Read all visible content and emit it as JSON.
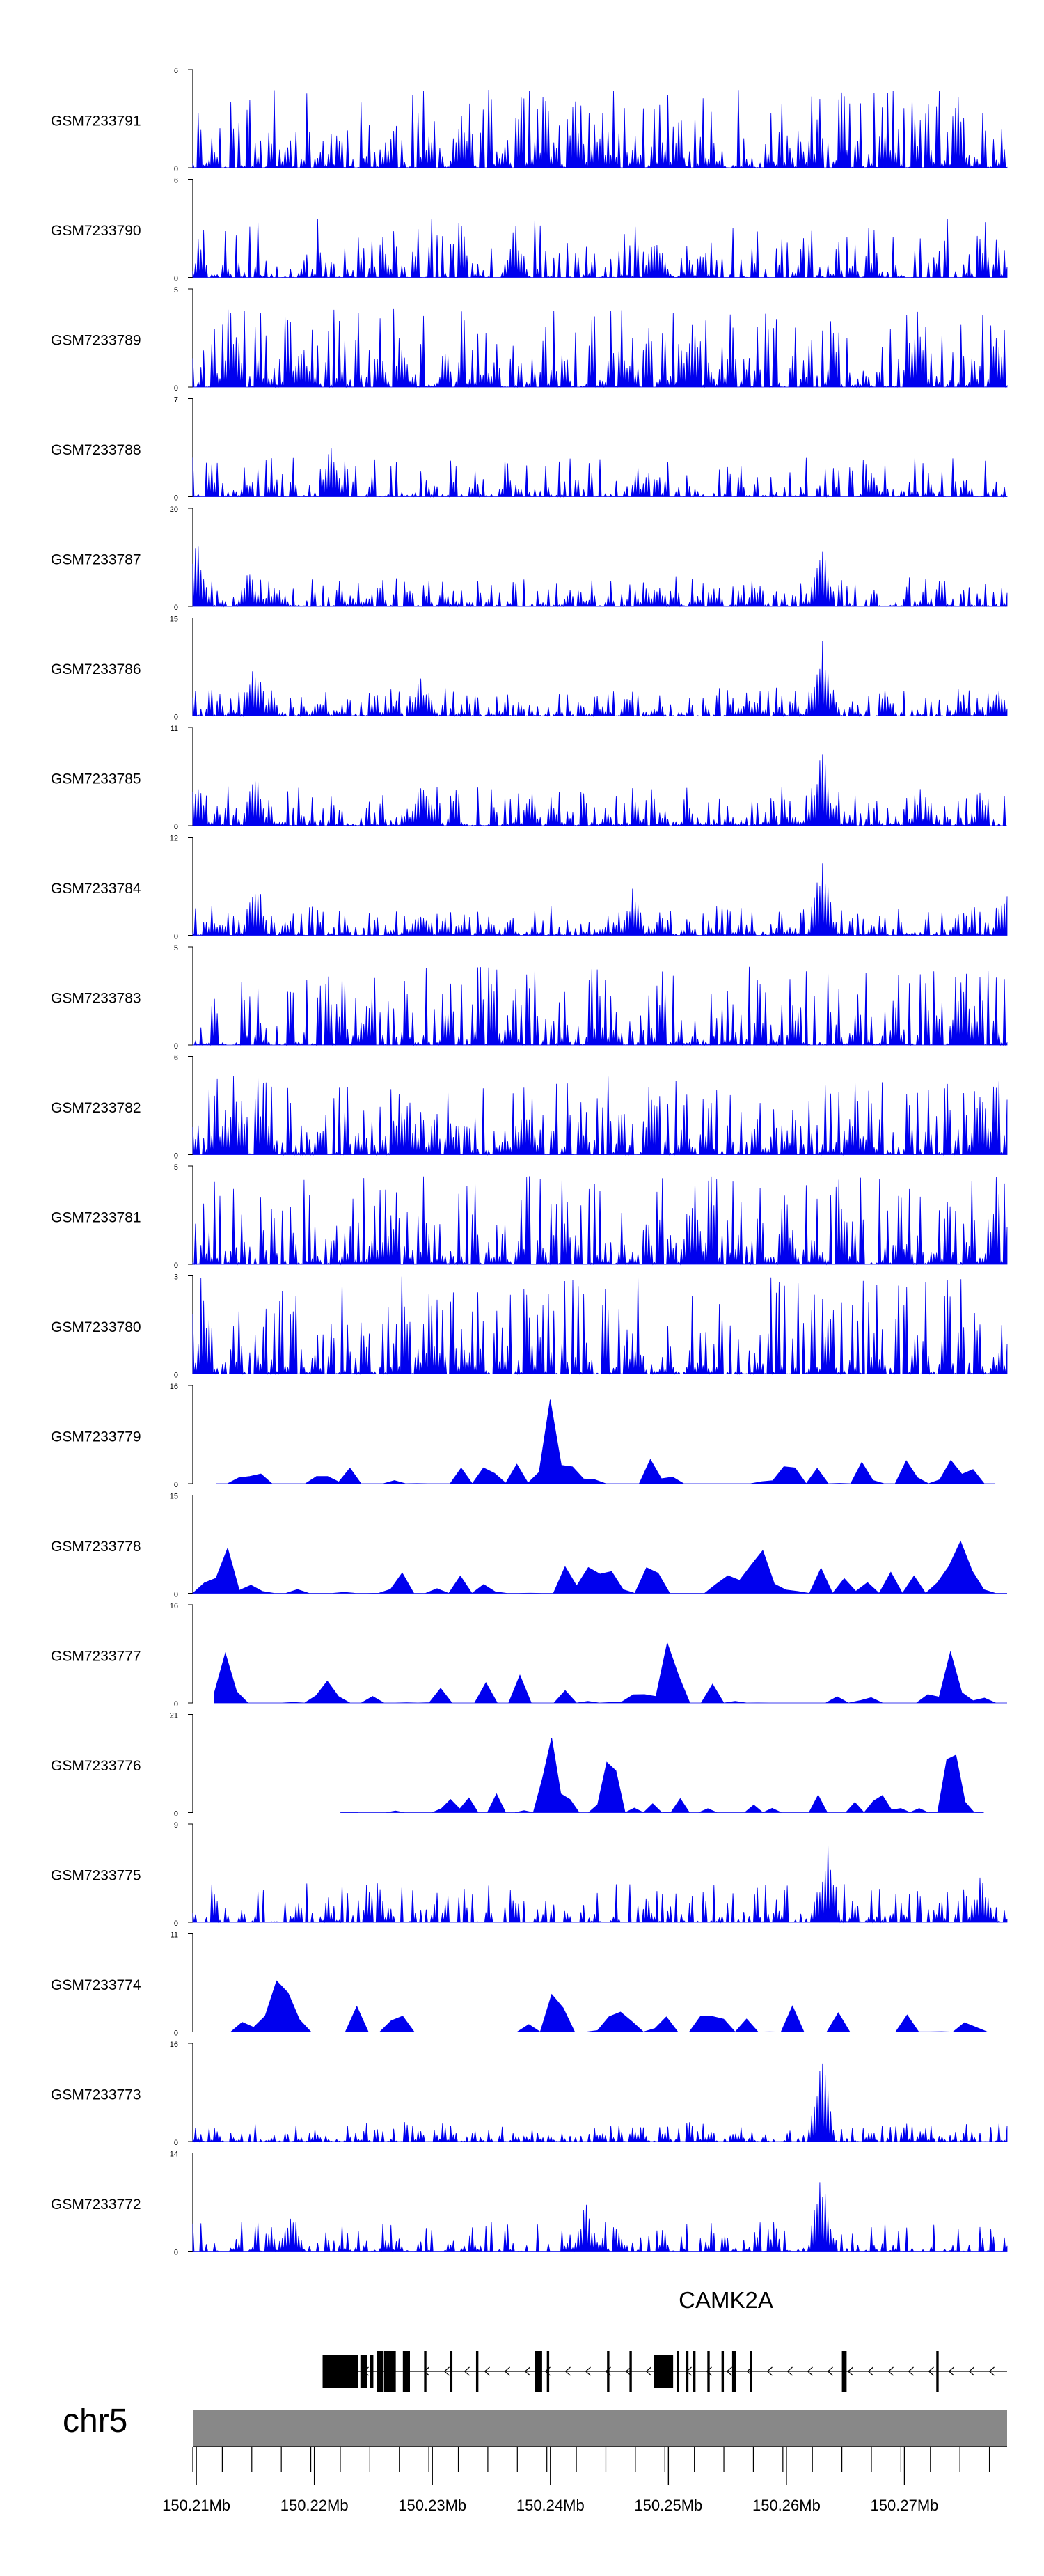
{
  "chart_data": {
    "type": "area",
    "x_range_mb": [
      150.2097,
      150.2787
    ],
    "x_ticks": [
      "150.21Mb",
      "150.22Mb",
      "150.23Mb",
      "150.24Mb",
      "150.25Mb",
      "150.26Mb",
      "150.27Mb"
    ],
    "x_tick_values": [
      150.21,
      150.22,
      150.23,
      150.24,
      150.25,
      150.26,
      150.27
    ],
    "chromosome": "chr5",
    "gene": {
      "name": "CAMK2A",
      "strand": "-",
      "start_mb": 150.2207,
      "end_mb": 150.2787
    },
    "exons_mb": [
      [
        150.2207,
        150.2237
      ],
      [
        150.2239,
        150.2245
      ],
      [
        150.2247,
        150.225
      ],
      [
        150.2253,
        150.2258
      ],
      [
        150.2259,
        150.2269
      ],
      [
        150.2275,
        150.2281
      ],
      [
        150.2293,
        150.2295
      ],
      [
        150.2315,
        150.2317
      ],
      [
        150.2337,
        150.2339
      ],
      [
        150.2387,
        150.2393
      ],
      [
        150.2397,
        150.2399
      ],
      [
        150.2448,
        150.245
      ],
      [
        150.2467,
        150.2469
      ],
      [
        150.2488,
        150.2504
      ],
      [
        150.2507,
        150.2509
      ],
      [
        150.2515,
        150.2517
      ],
      [
        150.2521,
        150.2523
      ],
      [
        150.2533,
        150.2535
      ],
      [
        150.2545,
        150.2547
      ],
      [
        150.2554,
        150.2557
      ],
      [
        150.2569,
        150.2571
      ],
      [
        150.2647,
        150.2651
      ],
      [
        150.2727,
        150.2729
      ]
    ],
    "tracks": [
      {
        "name": "GSM7233791",
        "ymax": 6,
        "seed": 11,
        "baseline": 0.8,
        "sparse": 0,
        "hotspots": [
          [
            150.2325,
            0.5
          ],
          [
            150.244,
            0.4
          ]
        ]
      },
      {
        "name": "GSM7233790",
        "ymax": 6,
        "seed": 23,
        "baseline": 0.6,
        "sparse": 0.2,
        "hotspots": [
          [
            150.237,
            0.6
          ],
          [
            150.249,
            0.5
          ]
        ]
      },
      {
        "name": "GSM7233789",
        "ymax": 5,
        "seed": 37,
        "baseline": 0.8,
        "sparse": 0,
        "hotspots": [
          [
            150.219,
            0.5
          ]
        ]
      },
      {
        "name": "GSM7233788",
        "ymax": 7,
        "seed": 41,
        "baseline": 0.4,
        "sparse": 0.35,
        "hotspots": [
          [
            150.2215,
            0.6
          ]
        ]
      },
      {
        "name": "GSM7233787",
        "ymax": 20,
        "seed": 53,
        "baseline": 0.3,
        "sparse": 0,
        "hotspots": [
          [
            150.21,
            0.9
          ],
          [
            150.2145,
            0.4
          ],
          [
            150.263,
            0.8
          ]
        ]
      },
      {
        "name": "GSM7233786",
        "ymax": 15,
        "seed": 61,
        "baseline": 0.3,
        "sparse": 0,
        "hotspots": [
          [
            150.215,
            0.6
          ],
          [
            150.229,
            0.4
          ],
          [
            150.263,
            0.9
          ],
          [
            150.278,
            0.3
          ]
        ]
      },
      {
        "name": "GSM7233785",
        "ymax": 11,
        "seed": 73,
        "baseline": 0.4,
        "sparse": 0,
        "hotspots": [
          [
            150.21,
            0.5
          ],
          [
            150.215,
            0.6
          ],
          [
            150.229,
            0.5
          ],
          [
            150.263,
            0.9
          ]
        ]
      },
      {
        "name": "GSM7233784",
        "ymax": 12,
        "seed": 89,
        "baseline": 0.3,
        "sparse": 0,
        "hotspots": [
          [
            150.215,
            0.7
          ],
          [
            150.229,
            0.3
          ],
          [
            150.247,
            0.5
          ],
          [
            150.263,
            0.9
          ],
          [
            150.2785,
            0.5
          ]
        ]
      },
      {
        "name": "GSM7233783",
        "ymax": 5,
        "seed": 97,
        "baseline": 0.8,
        "sparse": 0,
        "hotspots": [
          [
            150.275,
            0.8
          ]
        ]
      },
      {
        "name": "GSM7233782",
        "ymax": 6,
        "seed": 103,
        "baseline": 0.8,
        "sparse": 0,
        "hotspots": [
          [
            150.2765,
            0.8
          ],
          [
            150.238,
            0.6
          ]
        ]
      },
      {
        "name": "GSM7233781",
        "ymax": 5,
        "seed": 109,
        "baseline": 0.9,
        "sparse": 0,
        "hotspots": [
          [
            150.252,
            0.7
          ]
        ]
      },
      {
        "name": "GSM7233780",
        "ymax": 3,
        "seed": 127,
        "baseline": 1.0,
        "sparse": 0,
        "hotspots": [
          [
            150.23,
            0.5
          ]
        ]
      },
      {
        "name": "GSM7233779",
        "ymax": 16,
        "seed": 131,
        "baseline": 0.25,
        "sparse": 0.8,
        "hotspots": [
          [
            150.24,
            0.9
          ],
          [
            150.274,
            0.4
          ]
        ],
        "clip": [
          150.2117,
          150.2777
        ]
      },
      {
        "name": "GSM7233778",
        "ymax": 15,
        "seed": 137,
        "baseline": 0.3,
        "sparse": 0.7,
        "hotspots": [
          [
            150.2125,
            0.8
          ],
          [
            150.275,
            0.9
          ],
          [
            150.258,
            0.6
          ]
        ],
        "clip": [
          150.2097,
          150.2787
        ]
      },
      {
        "name": "GSM7233777",
        "ymax": 16,
        "seed": 149,
        "baseline": 0.3,
        "sparse": 0.75,
        "hotspots": [
          [
            150.2125,
            0.6
          ],
          [
            150.25,
            0.9
          ],
          [
            150.274,
            0.6
          ]
        ],
        "clip": [
          150.2115,
          150.2787
        ]
      },
      {
        "name": "GSM7233776",
        "ymax": 21,
        "seed": 151,
        "baseline": 0.2,
        "sparse": 0.9,
        "hotspots": [
          [
            150.24,
            0.85
          ],
          [
            150.245,
            0.8
          ],
          [
            150.274,
            0.95
          ]
        ],
        "clip": [
          150.2222,
          150.2767
        ]
      },
      {
        "name": "GSM7233775",
        "ymax": 9,
        "seed": 157,
        "baseline": 0.4,
        "sparse": 0.3,
        "hotspots": [
          [
            150.2635,
            0.95
          ],
          [
            150.2765,
            0.5
          ]
        ]
      },
      {
        "name": "GSM7233774",
        "ymax": 11,
        "seed": 163,
        "baseline": 0.3,
        "sparse": 0.75,
        "hotspots": [
          [
            150.2173,
            0.95
          ],
          [
            150.2405,
            0.6
          ]
        ],
        "clip": [
          150.21,
          150.278
        ]
      },
      {
        "name": "GSM7233773",
        "ymax": 16,
        "seed": 167,
        "baseline": 0.2,
        "sparse": 0.2,
        "hotspots": [
          [
            150.263,
            0.95
          ]
        ]
      },
      {
        "name": "GSM7233772",
        "ymax": 14,
        "seed": 173,
        "baseline": 0.3,
        "sparse": 0.5,
        "hotspots": [
          [
            150.263,
            0.95
          ],
          [
            150.218,
            0.5
          ],
          [
            150.243,
            0.5
          ]
        ]
      }
    ]
  },
  "colors": {
    "signal": "#0000ee",
    "gene": "#000000",
    "ideogram": "#888888",
    "axis": "#000000"
  }
}
